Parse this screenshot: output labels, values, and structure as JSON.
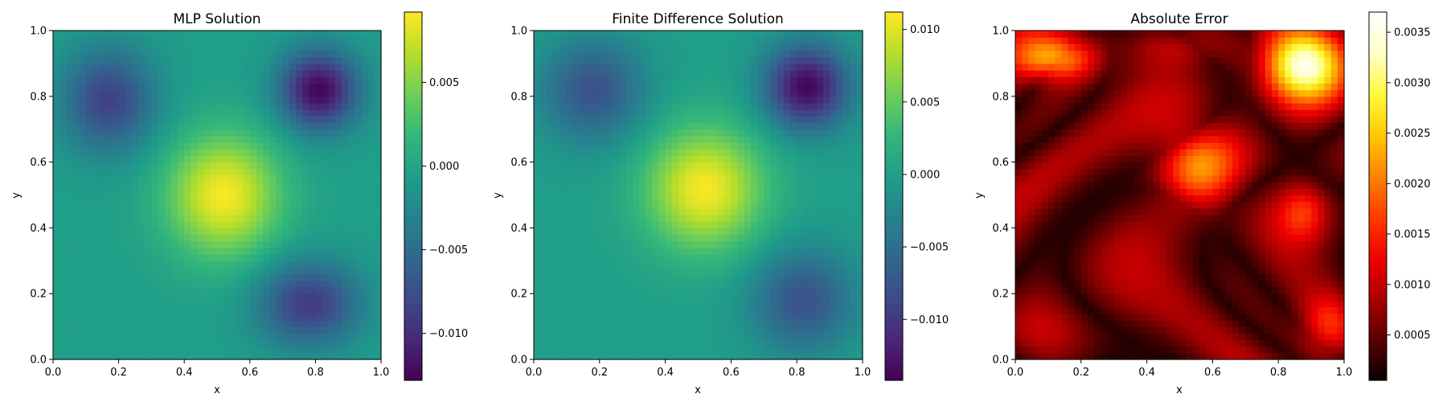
{
  "chart_data": [
    {
      "type": "heatmap",
      "title": "MLP Solution",
      "xlabel": "x",
      "ylabel": "y",
      "xlim": [
        0.0,
        1.0
      ],
      "ylim": [
        0.0,
        1.0
      ],
      "xticks": [
        "0.0",
        "0.2",
        "0.4",
        "0.6",
        "0.8",
        "1.0"
      ],
      "yticks": [
        "0.0",
        "0.2",
        "0.4",
        "0.6",
        "0.8",
        "1.0"
      ],
      "colormap": "viridis",
      "colorbar": {
        "min": -0.0128,
        "max": 0.0092,
        "ticks": [
          -0.01,
          -0.005,
          0.0,
          0.005
        ],
        "tick_labels": [
          "−0.010",
          "−0.005",
          "0.000",
          "0.005"
        ]
      },
      "grid_size": 50,
      "features": [
        {
          "name": "peak",
          "x": 0.52,
          "y": 0.5,
          "value": 0.009
        },
        {
          "name": "trough",
          "x": 0.81,
          "y": 0.82,
          "value": -0.0126
        },
        {
          "name": "trough",
          "x": 0.17,
          "y": 0.79,
          "value": -0.0085
        },
        {
          "name": "trough",
          "x": 0.78,
          "y": 0.17,
          "value": -0.009
        }
      ]
    },
    {
      "type": "heatmap",
      "title": "Finite Difference Solution",
      "xlabel": "x",
      "ylabel": "y",
      "xlim": [
        0.0,
        1.0
      ],
      "ylim": [
        0.0,
        1.0
      ],
      "xticks": [
        "0.0",
        "0.2",
        "0.4",
        "0.6",
        "0.8",
        "1.0"
      ],
      "yticks": [
        "0.0",
        "0.2",
        "0.4",
        "0.6",
        "0.8",
        "1.0"
      ],
      "colormap": "viridis",
      "colorbar": {
        "min": -0.0142,
        "max": 0.0112,
        "ticks": [
          -0.01,
          -0.005,
          0.0,
          0.005,
          0.01
        ],
        "tick_labels": [
          "−0.010",
          "−0.005",
          "0.000",
          "0.005",
          "0.010"
        ]
      },
      "grid_size": 50,
      "features": [
        {
          "name": "peak",
          "x": 0.52,
          "y": 0.52,
          "value": 0.0105
        },
        {
          "name": "trough",
          "x": 0.83,
          "y": 0.83,
          "value": -0.014
        },
        {
          "name": "trough",
          "x": 0.18,
          "y": 0.82,
          "value": -0.008
        },
        {
          "name": "trough",
          "x": 0.82,
          "y": 0.18,
          "value": -0.008
        }
      ]
    },
    {
      "type": "heatmap",
      "title": "Absolute Error",
      "xlabel": "x",
      "ylabel": "y",
      "xlim": [
        0.0,
        1.0
      ],
      "ylim": [
        0.0,
        1.0
      ],
      "xticks": [
        "0.0",
        "0.2",
        "0.4",
        "0.6",
        "0.8",
        "1.0"
      ],
      "yticks": [
        "0.0",
        "0.2",
        "0.4",
        "0.6",
        "0.8",
        "1.0"
      ],
      "colormap": "hot",
      "colorbar": {
        "min": 5e-05,
        "max": 0.0037,
        "ticks": [
          0.0005,
          0.001,
          0.0015,
          0.002,
          0.0025,
          0.003,
          0.0035
        ],
        "tick_labels": [
          "0.0005",
          "0.0010",
          "0.0015",
          "0.0020",
          "0.0025",
          "0.0030",
          "0.0035"
        ]
      },
      "grid_size": 50,
      "features": [
        {
          "name": "hotspot",
          "x": 0.88,
          "y": 0.9,
          "value": 0.0033
        },
        {
          "name": "hotspot",
          "x": 0.12,
          "y": 0.92,
          "value": 0.0024
        },
        {
          "name": "hotspot",
          "x": 0.55,
          "y": 0.58,
          "value": 0.0019
        },
        {
          "name": "hotspot",
          "x": 0.95,
          "y": 0.1,
          "value": 0.0015
        },
        {
          "name": "hotspot",
          "x": 0.88,
          "y": 0.45,
          "value": 0.0013
        }
      ]
    }
  ]
}
